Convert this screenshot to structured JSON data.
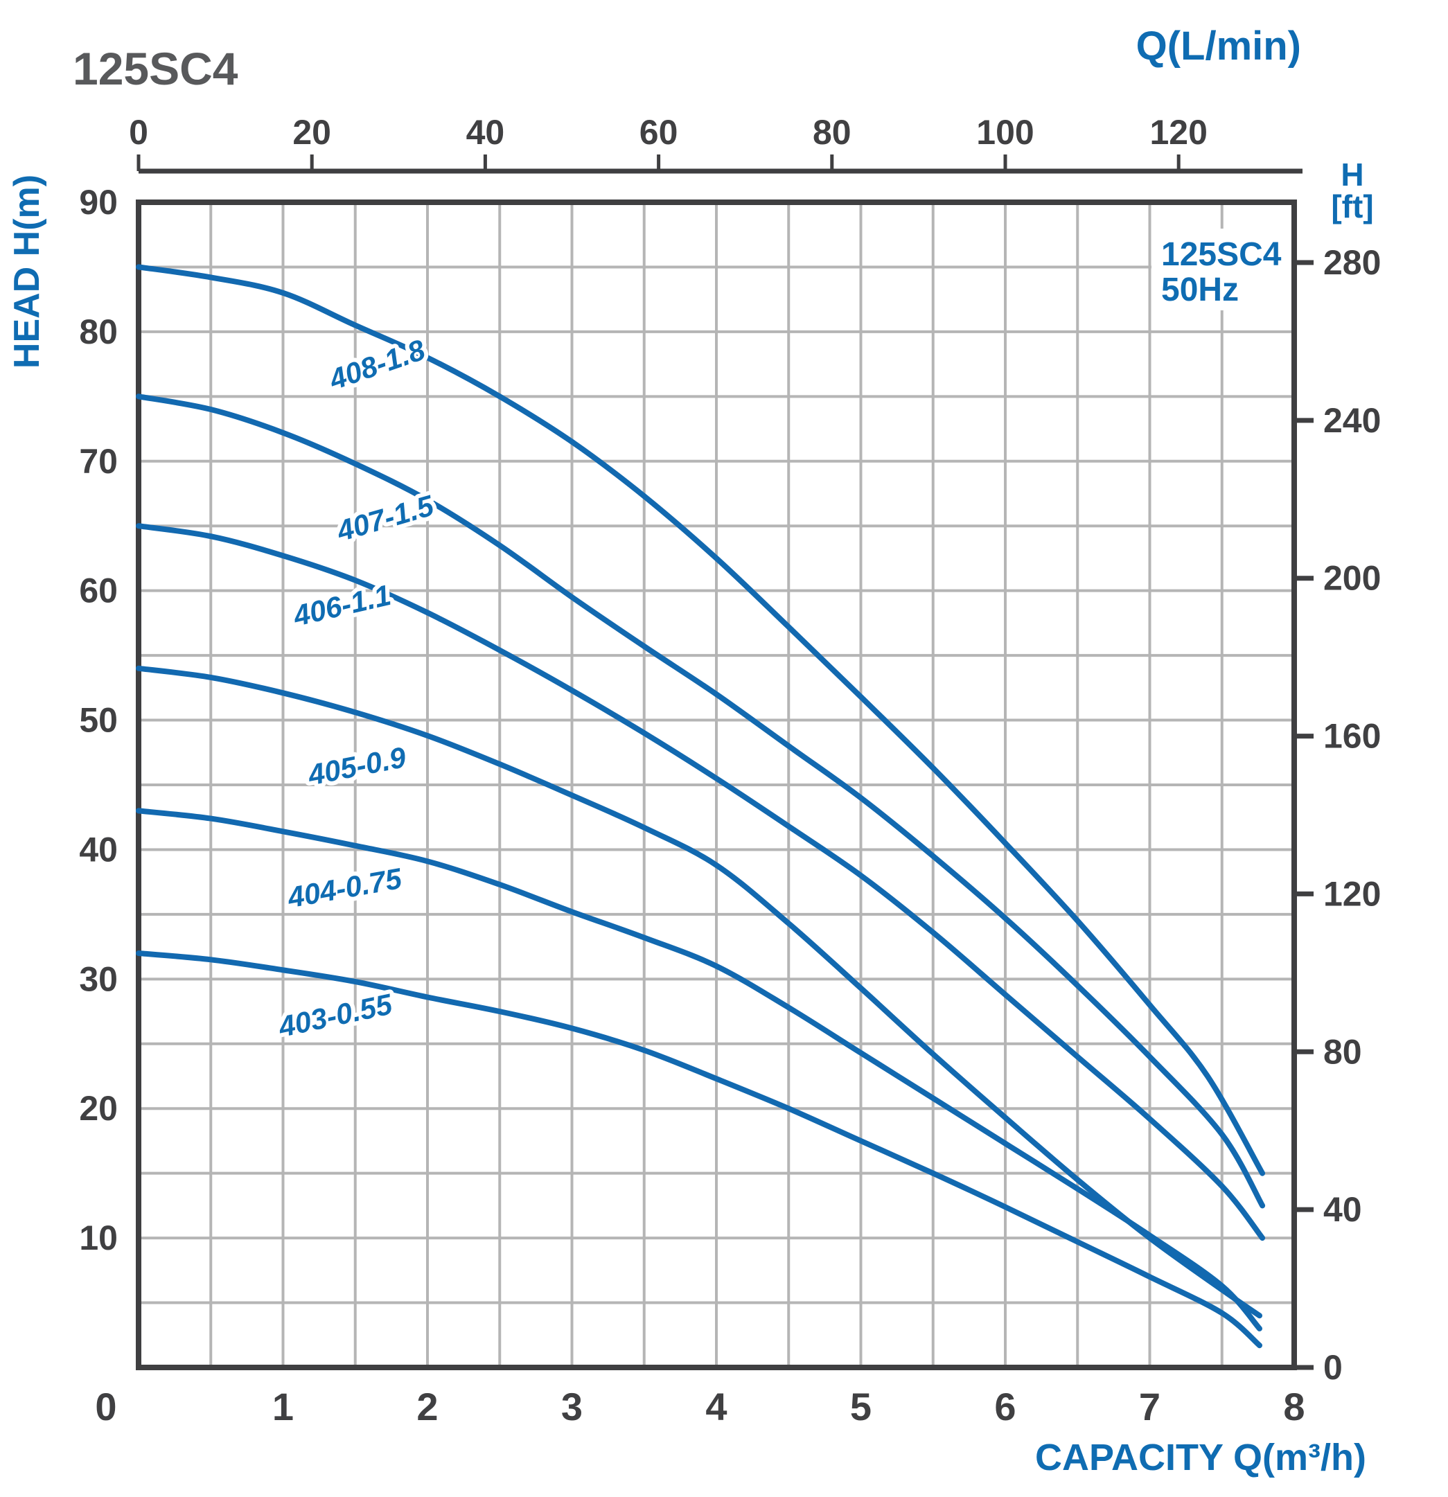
{
  "chart": {
    "title": "125SC4",
    "legend": {
      "line1": "125SC4",
      "line2": "50Hz"
    },
    "axes": {
      "top": {
        "title": "Q(L/min)",
        "ticks": [
          0,
          20,
          40,
          60,
          80,
          100,
          120
        ],
        "unit": "L/min"
      },
      "left": {
        "title": "HEAD H(m)",
        "ticks": [
          90,
          80,
          70,
          60,
          50,
          40,
          30,
          20,
          10
        ],
        "unit": "m"
      },
      "right": {
        "title_line1": "H",
        "title_line2": "[ft]",
        "ticks": [
          280,
          240,
          200,
          160,
          120,
          80,
          40,
          0
        ],
        "unit": "ft"
      },
      "bottom": {
        "title": "CAPACITY Q(m³/h)",
        "ticks": [
          0,
          1,
          2,
          3,
          4,
          5,
          6,
          7,
          8
        ],
        "unit": "m³/h"
      }
    },
    "colors": {
      "accent": "#0f6cb2",
      "curve": "#1269b0",
      "titlegray": "#58595b",
      "tickgray": "#404042",
      "grid": "#b5b5b5",
      "frame": "#3f3f41"
    }
  },
  "chart_data": {
    "type": "line",
    "title": "125SC4 50Hz",
    "xlabel": "CAPACITY Q(m³/h)",
    "xlabel_secondary": "Q(L/min)",
    "ylabel": "HEAD H(m)",
    "ylabel_secondary": "H [ft]",
    "xlim": [
      0,
      8
    ],
    "ylim": [
      0,
      90
    ],
    "x2lim_lmin": [
      0,
      133.33
    ],
    "y2lim_ft": [
      0,
      295
    ],
    "grid": "on",
    "grid_step_x": 0.5,
    "grid_step_y": 5,
    "legend_position": "top-right-inside",
    "series": [
      {
        "name": "408-1.8",
        "points": [
          [
            0,
            85
          ],
          [
            0.5,
            84.2
          ],
          [
            1,
            83
          ],
          [
            1.5,
            80.5
          ],
          [
            2,
            78
          ],
          [
            2.5,
            75
          ],
          [
            3,
            71.5
          ],
          [
            3.5,
            67.3
          ],
          [
            4,
            62.5
          ],
          [
            4.5,
            57.2
          ],
          [
            5,
            51.8
          ],
          [
            5.5,
            46.3
          ],
          [
            6,
            40.5
          ],
          [
            6.5,
            34.5
          ],
          [
            7,
            28
          ],
          [
            7.4,
            22.5
          ],
          [
            7.78,
            15
          ]
        ]
      },
      {
        "name": "407-1.5",
        "points": [
          [
            0,
            75
          ],
          [
            0.5,
            74
          ],
          [
            1,
            72.2
          ],
          [
            1.5,
            69.8
          ],
          [
            2,
            67
          ],
          [
            2.5,
            63.5
          ],
          [
            3,
            59.5
          ],
          [
            3.5,
            55.7
          ],
          [
            4,
            52
          ],
          [
            4.5,
            48
          ],
          [
            5,
            44
          ],
          [
            5.5,
            39.5
          ],
          [
            6,
            34.7
          ],
          [
            6.5,
            29.5
          ],
          [
            7,
            24
          ],
          [
            7.5,
            18
          ],
          [
            7.78,
            12.5
          ]
        ]
      },
      {
        "name": "406-1.1",
        "points": [
          [
            0,
            65
          ],
          [
            0.5,
            64.2
          ],
          [
            1,
            62.7
          ],
          [
            1.5,
            60.8
          ],
          [
            2,
            58.3
          ],
          [
            2.5,
            55.4
          ],
          [
            3,
            52.3
          ],
          [
            3.5,
            49
          ],
          [
            4,
            45.5
          ],
          [
            4.5,
            41.8
          ],
          [
            5,
            38
          ],
          [
            5.5,
            33.6
          ],
          [
            6,
            28.8
          ],
          [
            6.5,
            24
          ],
          [
            7,
            19.2
          ],
          [
            7.5,
            14
          ],
          [
            7.78,
            10
          ]
        ]
      },
      {
        "name": "405-0.9",
        "points": [
          [
            0,
            54
          ],
          [
            0.5,
            53.3
          ],
          [
            1,
            52.1
          ],
          [
            1.5,
            50.6
          ],
          [
            2,
            48.8
          ],
          [
            2.5,
            46.6
          ],
          [
            3,
            44.2
          ],
          [
            3.5,
            41.7
          ],
          [
            4,
            38.8
          ],
          [
            4.5,
            34.3
          ],
          [
            5,
            29.3
          ],
          [
            5.5,
            24.2
          ],
          [
            6,
            19.3
          ],
          [
            6.5,
            14.5
          ],
          [
            7,
            10
          ],
          [
            7.5,
            6
          ],
          [
            7.76,
            4
          ]
        ]
      },
      {
        "name": "404-0.75",
        "points": [
          [
            0,
            43
          ],
          [
            0.5,
            42.4
          ],
          [
            1,
            41.4
          ],
          [
            1.5,
            40.3
          ],
          [
            2,
            39.1
          ],
          [
            2.5,
            37.3
          ],
          [
            3,
            35.2
          ],
          [
            3.5,
            33.2
          ],
          [
            4,
            31
          ],
          [
            4.5,
            27.8
          ],
          [
            5,
            24.3
          ],
          [
            5.5,
            20.8
          ],
          [
            6,
            17.3
          ],
          [
            6.5,
            13.8
          ],
          [
            7,
            10.2
          ],
          [
            7.5,
            6.3
          ],
          [
            7.76,
            3
          ]
        ]
      },
      {
        "name": "403-0.55",
        "points": [
          [
            0,
            32
          ],
          [
            0.5,
            31.5
          ],
          [
            1,
            30.7
          ],
          [
            1.5,
            29.8
          ],
          [
            2,
            28.6
          ],
          [
            2.5,
            27.5
          ],
          [
            3,
            26.2
          ],
          [
            3.5,
            24.5
          ],
          [
            4,
            22.3
          ],
          [
            4.5,
            20
          ],
          [
            5,
            17.5
          ],
          [
            5.5,
            15
          ],
          [
            6,
            12.4
          ],
          [
            6.5,
            9.7
          ],
          [
            7,
            7
          ],
          [
            7.5,
            4.2
          ],
          [
            7.76,
            1.7
          ]
        ]
      }
    ]
  }
}
